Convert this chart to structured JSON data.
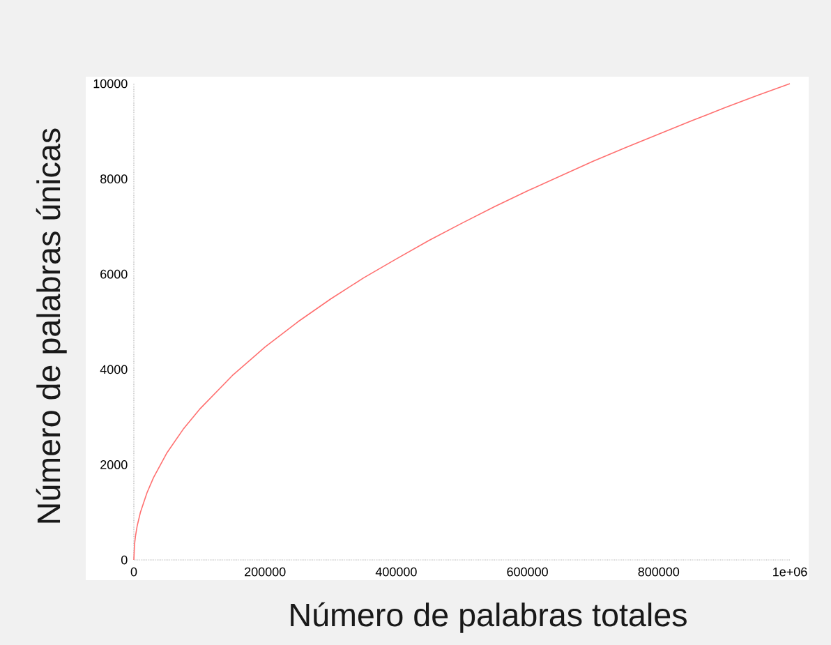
{
  "chart_data": {
    "type": "line",
    "xlabel": "Número de palabras totales",
    "ylabel": "Número de palabras únicas",
    "x": [
      0,
      1000,
      2500,
      5000,
      10000,
      20000,
      30000,
      50000,
      75000,
      100000,
      150000,
      200000,
      250000,
      300000,
      350000,
      400000,
      450000,
      500000,
      550000,
      600000,
      650000,
      700000,
      750000,
      800000,
      850000,
      900000,
      950000,
      1000000
    ],
    "values": [
      0,
      320,
      500,
      710,
      1000,
      1410,
      1730,
      2240,
      2740,
      3160,
      3870,
      4470,
      5000,
      5480,
      5920,
      6320,
      6710,
      7070,
      7420,
      7750,
      8060,
      8370,
      8660,
      8940,
      9220,
      9490,
      9750,
      10000
    ],
    "color": "#ff7070",
    "xlim": [
      0,
      1000000
    ],
    "ylim": [
      0,
      10000
    ],
    "xticks": [
      0,
      200000,
      400000,
      600000,
      800000,
      {
        "value": 1000000,
        "label": "1e+06"
      }
    ],
    "yticks": [
      0,
      2000,
      4000,
      6000,
      8000,
      10000
    ],
    "grid": false,
    "marker": "none",
    "line_style": "solid"
  }
}
